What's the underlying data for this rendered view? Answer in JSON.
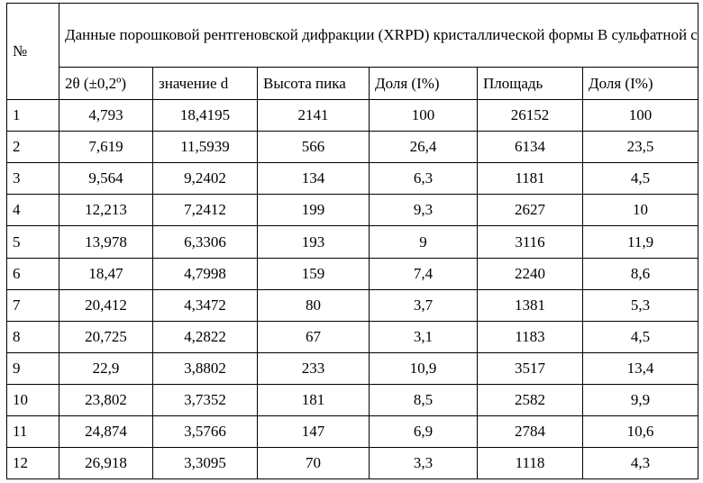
{
  "table": {
    "corner": "№",
    "title": "Данные порошковой рентгеновской дифракции (XRPD) кристаллической формы В сульфатной соли",
    "headers": [
      "2θ (±0,2º)",
      "значение d",
      "Высота пика",
      "Доля (I%)",
      "Площадь",
      "Доля (I%)"
    ],
    "rows": [
      [
        "1",
        "4,793",
        "18,4195",
        "2141",
        "100",
        "26152",
        "100"
      ],
      [
        "2",
        "7,619",
        "11,5939",
        "566",
        "26,4",
        "6134",
        "23,5"
      ],
      [
        "3",
        "9,564",
        "9,2402",
        "134",
        "6,3",
        "1181",
        "4,5"
      ],
      [
        "4",
        "12,213",
        "7,2412",
        "199",
        "9,3",
        "2627",
        "10"
      ],
      [
        "5",
        "13,978",
        "6,3306",
        "193",
        "9",
        "3116",
        "11,9"
      ],
      [
        "6",
        "18,47",
        "4,7998",
        "159",
        "7,4",
        "2240",
        "8,6"
      ],
      [
        "7",
        "20,412",
        "4,3472",
        "80",
        "3,7",
        "1381",
        "5,3"
      ],
      [
        "8",
        "20,725",
        "4,2822",
        "67",
        "3,1",
        "1183",
        "4,5"
      ],
      [
        "9",
        "22,9",
        "3,8802",
        "233",
        "10,9",
        "3517",
        "13,4"
      ],
      [
        "10",
        "23,802",
        "3,7352",
        "181",
        "8,5",
        "2582",
        "9,9"
      ],
      [
        "11",
        "24,874",
        "3,5766",
        "147",
        "6,9",
        "2784",
        "10,6"
      ],
      [
        "12",
        "26,918",
        "3,3095",
        "70",
        "3,3",
        "1118",
        "4,3"
      ]
    ]
  }
}
